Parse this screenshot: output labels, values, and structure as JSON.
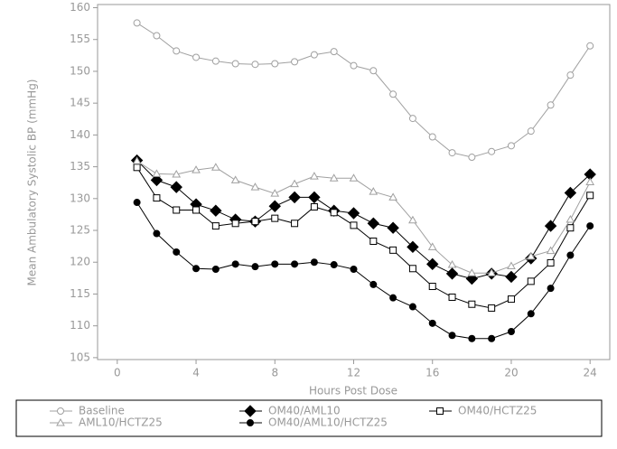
{
  "chart_data": {
    "type": "line",
    "x_label": "Hours Post Dose",
    "y_label": "Mean Ambulatory Systolic BP (mmHg)",
    "x": [
      1,
      2,
      3,
      4,
      5,
      6,
      7,
      8,
      9,
      10,
      11,
      12,
      13,
      14,
      15,
      16,
      17,
      18,
      19,
      20,
      21,
      22,
      23,
      24
    ],
    "xlim": [
      -1,
      25
    ],
    "xticks": [
      0,
      4,
      8,
      12,
      16,
      20,
      24
    ],
    "ylim": [
      104.7,
      160.5
    ],
    "yticks": [
      105,
      110,
      115,
      120,
      125,
      130,
      135,
      140,
      145,
      150,
      155,
      160
    ],
    "series": [
      {
        "name": "Baseline",
        "color": "#a0a0a0",
        "marker": "circle-open",
        "values": [
          157.6,
          155.6,
          153.2,
          152.2,
          151.6,
          151.2,
          151.1,
          151.2,
          151.5,
          152.6,
          153.1,
          150.9,
          150.1,
          146.4,
          142.6,
          139.7,
          137.2,
          136.5,
          137.4,
          138.3,
          140.6,
          144.7,
          149.4,
          154.0
        ]
      },
      {
        "name": "OM40/AML10",
        "color": "#000000",
        "marker": "diamond-filled",
        "values": [
          136.0,
          132.9,
          131.8,
          129.1,
          128.1,
          126.7,
          126.4,
          128.8,
          130.2,
          130.2,
          128.1,
          127.7,
          126.1,
          125.4,
          122.4,
          119.7,
          118.2,
          117.4,
          118.2,
          117.7,
          120.6,
          125.7,
          130.9,
          133.8
        ]
      },
      {
        "name": "OM40/HCTZ25",
        "color": "#000000",
        "marker": "square-open",
        "values": [
          134.9,
          130.1,
          128.2,
          128.2,
          125.7,
          126.1,
          126.4,
          126.9,
          126.1,
          128.7,
          127.8,
          125.8,
          123.3,
          121.9,
          119.0,
          116.2,
          114.5,
          113.4,
          112.8,
          114.2,
          117.0,
          119.9,
          125.4,
          130.5
        ]
      },
      {
        "name": "AML10/HCTZ25",
        "color": "#a0a0a0",
        "marker": "triangle-open",
        "values": [
          135.9,
          133.9,
          133.8,
          134.5,
          134.9,
          132.9,
          131.8,
          130.8,
          132.3,
          133.5,
          133.2,
          133.2,
          131.1,
          130.2,
          126.6,
          122.4,
          119.6,
          118.3,
          118.3,
          119.4,
          120.9,
          121.8,
          126.7,
          132.6
        ]
      },
      {
        "name": "OM40/AML10/HCTZ25",
        "color": "#000000",
        "marker": "circle-filled",
        "values": [
          129.4,
          124.5,
          121.6,
          119.0,
          118.9,
          119.7,
          119.3,
          119.7,
          119.7,
          120.0,
          119.6,
          118.9,
          116.5,
          114.4,
          113.0,
          110.4,
          108.5,
          108.0,
          108.0,
          109.1,
          111.9,
          115.9,
          121.1,
          125.7
        ]
      }
    ]
  }
}
